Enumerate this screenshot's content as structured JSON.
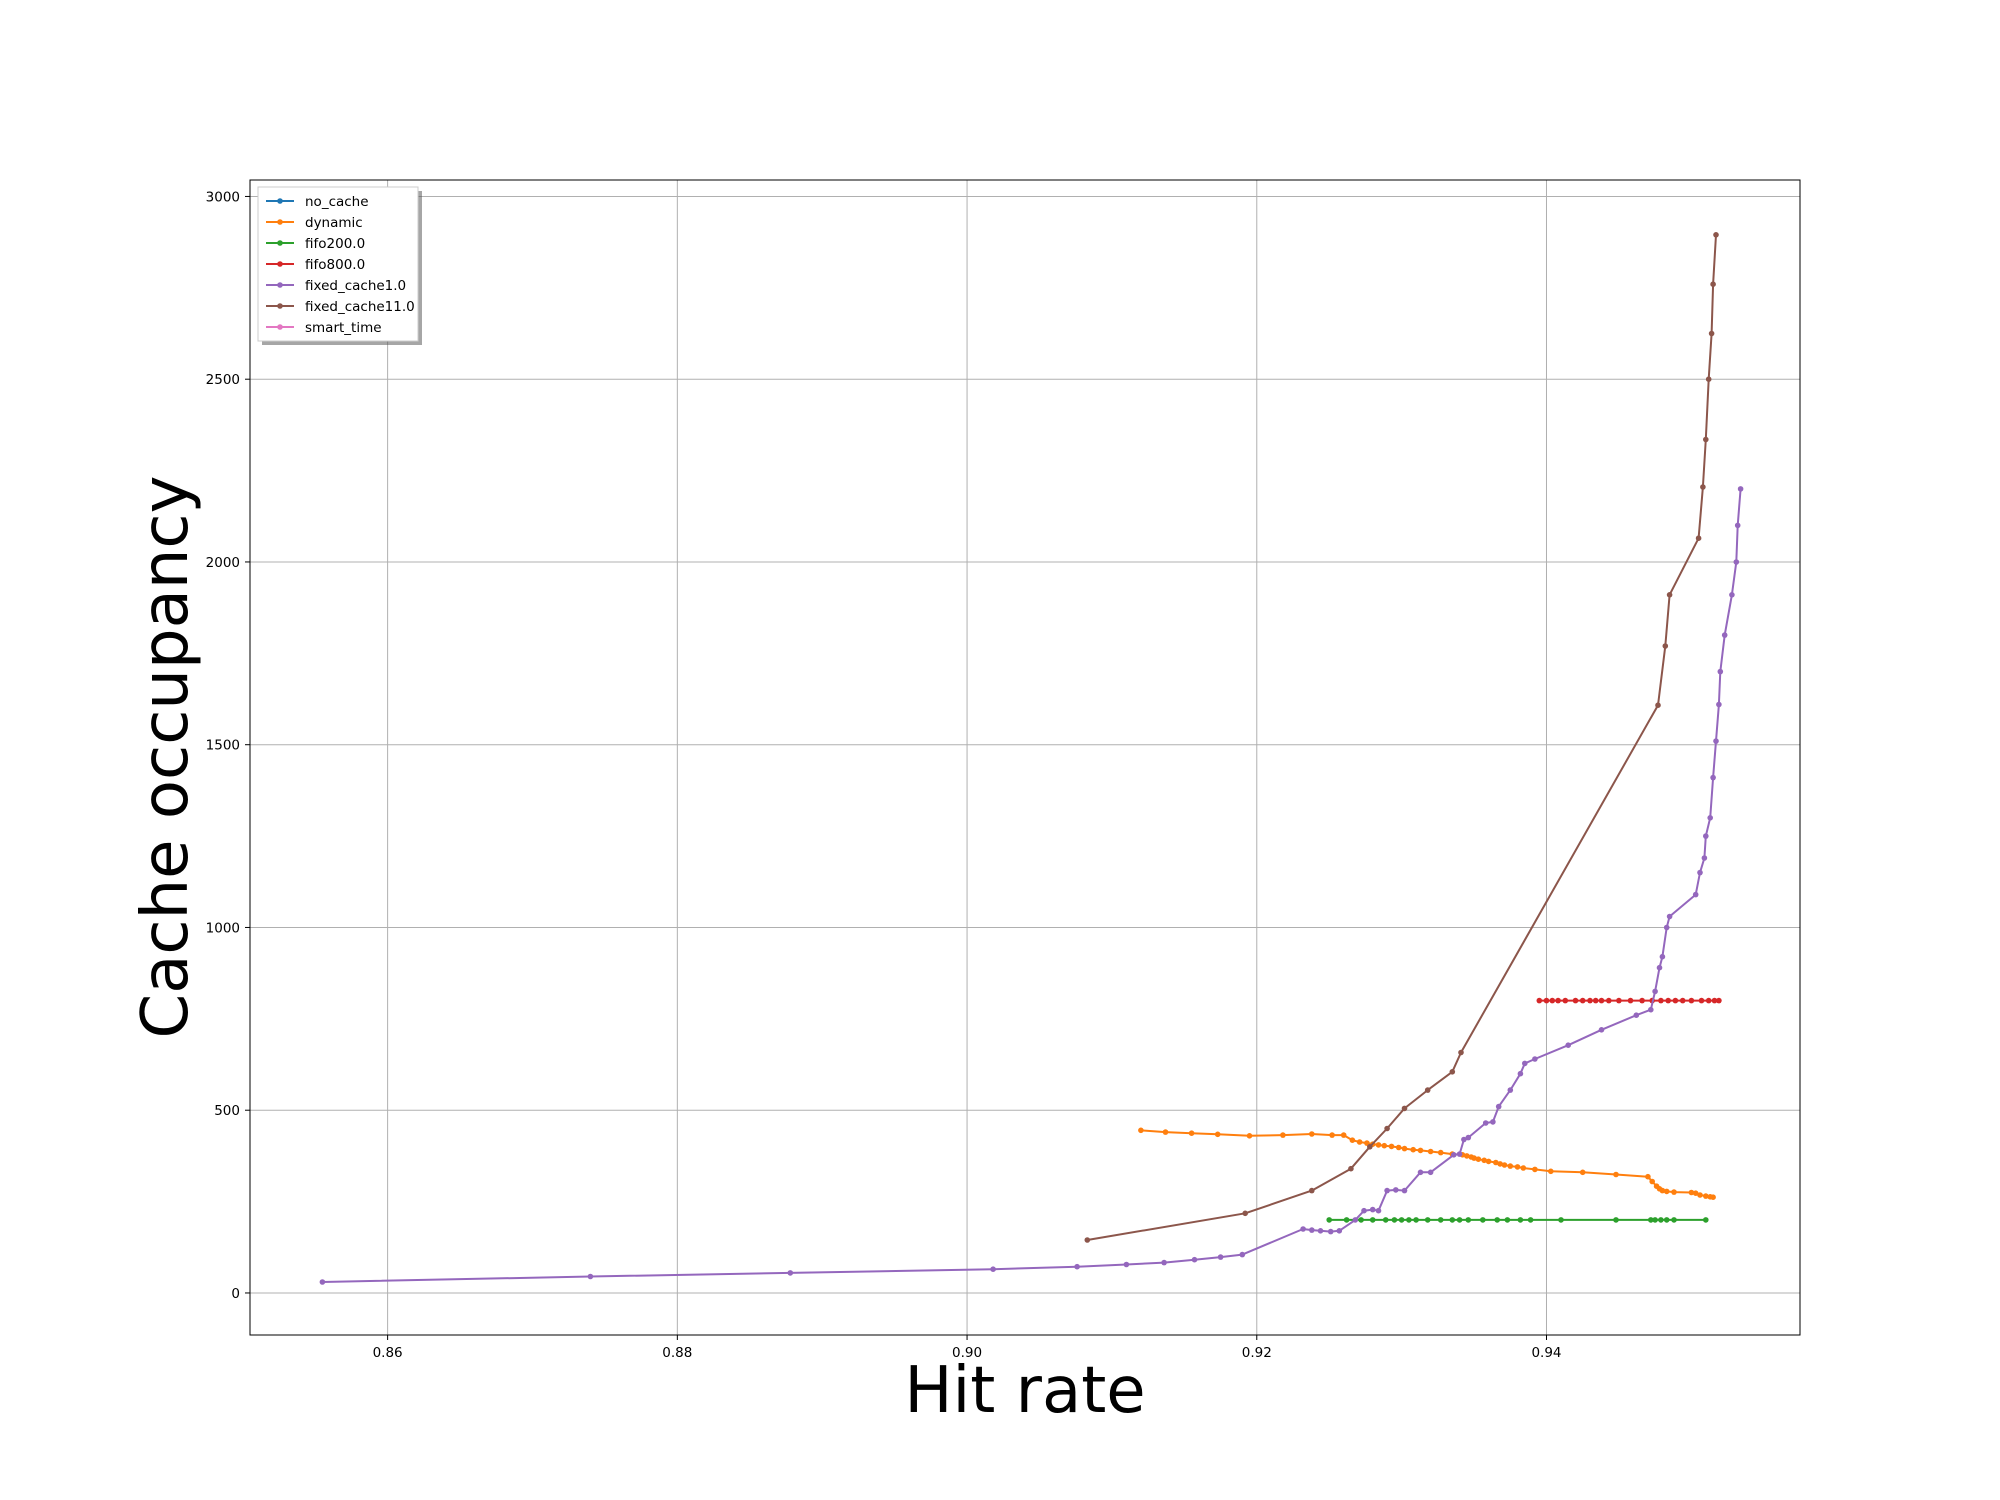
{
  "chart_data": {
    "type": "line",
    "title": "",
    "xlabel": "Hit rate",
    "ylabel": "Cache occupancy",
    "xlim": [
      0.8505,
      0.9575
    ],
    "ylim": [
      -115,
      3045
    ],
    "xticks": [
      0.86,
      0.88,
      0.9,
      0.92,
      0.94
    ],
    "xtick_labels": [
      "0.86",
      "0.88",
      "0.90",
      "0.92",
      "0.94"
    ],
    "yticks": [
      0,
      500,
      1000,
      1500,
      2000,
      2500,
      3000
    ],
    "ytick_labels": [
      "0",
      "500",
      "1000",
      "1500",
      "2000",
      "2500",
      "3000"
    ],
    "grid": true,
    "legend_position": "top-left",
    "series": [
      {
        "name": "no_cache",
        "color": "#1f77b4",
        "points": []
      },
      {
        "name": "dynamic",
        "color": "#ff7f0e",
        "points": [
          [
            0.912,
            445
          ],
          [
            0.9137,
            440
          ],
          [
            0.9155,
            437
          ],
          [
            0.9173,
            434
          ],
          [
            0.9195,
            430
          ],
          [
            0.9218,
            432
          ],
          [
            0.9238,
            435
          ],
          [
            0.9252,
            432
          ],
          [
            0.926,
            432
          ],
          [
            0.9266,
            418
          ],
          [
            0.9271,
            413
          ],
          [
            0.9276,
            410
          ],
          [
            0.928,
            407
          ],
          [
            0.9284,
            405
          ],
          [
            0.9288,
            403
          ],
          [
            0.9293,
            401
          ],
          [
            0.9298,
            398
          ],
          [
            0.9302,
            395
          ],
          [
            0.9308,
            392
          ],
          [
            0.9313,
            390
          ],
          [
            0.932,
            387
          ],
          [
            0.9327,
            384
          ],
          [
            0.9335,
            380
          ],
          [
            0.9342,
            378
          ],
          [
            0.9345,
            375
          ],
          [
            0.9348,
            372
          ],
          [
            0.935,
            369
          ],
          [
            0.9353,
            366
          ],
          [
            0.9357,
            363
          ],
          [
            0.936,
            360
          ],
          [
            0.9365,
            357
          ],
          [
            0.9368,
            353
          ],
          [
            0.9371,
            350
          ],
          [
            0.9375,
            347
          ],
          [
            0.938,
            345
          ],
          [
            0.9384,
            342
          ],
          [
            0.9392,
            338
          ],
          [
            0.9403,
            333
          ],
          [
            0.9425,
            330
          ],
          [
            0.9448,
            324
          ],
          [
            0.947,
            318
          ],
          [
            0.9473,
            305
          ],
          [
            0.9476,
            292
          ],
          [
            0.9478,
            285
          ],
          [
            0.948,
            280
          ],
          [
            0.9483,
            278
          ],
          [
            0.9488,
            276
          ],
          [
            0.95,
            275
          ],
          [
            0.9503,
            273
          ],
          [
            0.9506,
            268
          ],
          [
            0.951,
            265
          ],
          [
            0.9513,
            263
          ],
          [
            0.9515,
            262
          ]
        ]
      },
      {
        "name": "fifo200.0",
        "color": "#2ca02c",
        "points": [
          [
            0.925,
            200
          ],
          [
            0.9262,
            200
          ],
          [
            0.9272,
            200
          ],
          [
            0.928,
            200
          ],
          [
            0.9289,
            200
          ],
          [
            0.9295,
            200
          ],
          [
            0.93,
            200
          ],
          [
            0.9305,
            200
          ],
          [
            0.931,
            200
          ],
          [
            0.9318,
            200
          ],
          [
            0.9327,
            200
          ],
          [
            0.9335,
            200
          ],
          [
            0.934,
            200
          ],
          [
            0.9346,
            200
          ],
          [
            0.9356,
            200
          ],
          [
            0.9366,
            200
          ],
          [
            0.9373,
            200
          ],
          [
            0.9382,
            200
          ],
          [
            0.9389,
            200
          ],
          [
            0.941,
            200
          ],
          [
            0.9448,
            200
          ],
          [
            0.9472,
            200
          ],
          [
            0.9475,
            200
          ],
          [
            0.9479,
            200
          ],
          [
            0.9483,
            200
          ],
          [
            0.9488,
            200
          ],
          [
            0.951,
            200
          ]
        ]
      },
      {
        "name": "fifo800.0",
        "color": "#d62728",
        "points": [
          [
            0.9395,
            800
          ],
          [
            0.94,
            800
          ],
          [
            0.9404,
            800
          ],
          [
            0.9408,
            800
          ],
          [
            0.9413,
            800
          ],
          [
            0.942,
            800
          ],
          [
            0.9425,
            800
          ],
          [
            0.943,
            800
          ],
          [
            0.9434,
            800
          ],
          [
            0.9438,
            800
          ],
          [
            0.9443,
            800
          ],
          [
            0.945,
            800
          ],
          [
            0.9458,
            800
          ],
          [
            0.9466,
            800
          ],
          [
            0.9473,
            800
          ],
          [
            0.9479,
            800
          ],
          [
            0.9484,
            800
          ],
          [
            0.9489,
            800
          ],
          [
            0.9494,
            800
          ],
          [
            0.95,
            800
          ],
          [
            0.9507,
            800
          ],
          [
            0.9512,
            800
          ],
          [
            0.9516,
            800
          ],
          [
            0.9519,
            800
          ]
        ]
      },
      {
        "name": "fixed_cache1.0",
        "color": "#9467bd",
        "points": [
          [
            0.8555,
            30
          ],
          [
            0.874,
            45
          ],
          [
            0.8878,
            55
          ],
          [
            0.9018,
            65
          ],
          [
            0.9076,
            72
          ],
          [
            0.911,
            78
          ],
          [
            0.9136,
            83
          ],
          [
            0.9157,
            91
          ],
          [
            0.9175,
            98
          ],
          [
            0.919,
            105
          ],
          [
            0.9232,
            175
          ],
          [
            0.9238,
            172
          ],
          [
            0.9244,
            170
          ],
          [
            0.9251,
            168
          ],
          [
            0.9257,
            170
          ],
          [
            0.9268,
            200
          ],
          [
            0.9274,
            225
          ],
          [
            0.928,
            228
          ],
          [
            0.9284,
            225
          ],
          [
            0.929,
            280
          ],
          [
            0.9296,
            282
          ],
          [
            0.9302,
            280
          ],
          [
            0.9313,
            330
          ],
          [
            0.932,
            330
          ],
          [
            0.9336,
            378
          ],
          [
            0.934,
            380
          ],
          [
            0.9343,
            420
          ],
          [
            0.9346,
            425
          ],
          [
            0.9358,
            465
          ],
          [
            0.9363,
            468
          ],
          [
            0.9367,
            510
          ],
          [
            0.9375,
            555
          ],
          [
            0.9382,
            600
          ],
          [
            0.9385,
            628
          ],
          [
            0.9392,
            640
          ],
          [
            0.9415,
            678
          ],
          [
            0.9438,
            720
          ],
          [
            0.9462,
            760
          ],
          [
            0.9472,
            775
          ],
          [
            0.9475,
            825
          ],
          [
            0.9478,
            890
          ],
          [
            0.948,
            920
          ],
          [
            0.9483,
            1000
          ],
          [
            0.9485,
            1030
          ],
          [
            0.9503,
            1090
          ],
          [
            0.9506,
            1150
          ],
          [
            0.9509,
            1190
          ],
          [
            0.951,
            1250
          ],
          [
            0.9513,
            1300
          ],
          [
            0.9515,
            1410
          ],
          [
            0.9517,
            1510
          ],
          [
            0.9519,
            1610
          ],
          [
            0.952,
            1700
          ],
          [
            0.9523,
            1800
          ],
          [
            0.9528,
            1910
          ],
          [
            0.9531,
            2000
          ],
          [
            0.9532,
            2100
          ],
          [
            0.9534,
            2200
          ]
        ]
      },
      {
        "name": "fixed_cache11.0",
        "color": "#8c564b",
        "points": [
          [
            0.9083,
            145
          ],
          [
            0.9192,
            218
          ],
          [
            0.9238,
            280
          ],
          [
            0.9265,
            340
          ],
          [
            0.9278,
            400
          ],
          [
            0.929,
            450
          ],
          [
            0.9302,
            505
          ],
          [
            0.9318,
            555
          ],
          [
            0.9335,
            605
          ],
          [
            0.9341,
            658
          ],
          [
            0.9477,
            1608
          ],
          [
            0.9482,
            1770
          ],
          [
            0.9485,
            1910
          ],
          [
            0.9505,
            2065
          ],
          [
            0.9508,
            2205
          ],
          [
            0.951,
            2335
          ],
          [
            0.9512,
            2500
          ],
          [
            0.9514,
            2625
          ],
          [
            0.9515,
            2760
          ],
          [
            0.9517,
            2895
          ]
        ]
      },
      {
        "name": "smart_time",
        "color": "#e377c2",
        "points": []
      }
    ]
  }
}
